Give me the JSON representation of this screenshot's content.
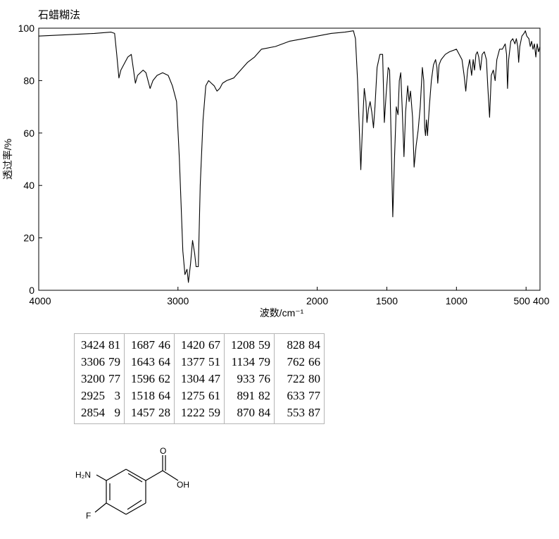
{
  "header": {
    "method_label": "石蜡糊法"
  },
  "chart_data": {
    "type": "line",
    "xlabel": "波数/cm⁻¹",
    "ylabel": "透过率/%",
    "xlim": [
      4000,
      400
    ],
    "ylim": [
      0,
      100
    ],
    "x_reversed": true,
    "xticks": [
      "4000",
      "3000",
      "2000",
      "1500",
      "1000",
      "500",
      "400"
    ],
    "yticks": [
      "0",
      "20",
      "40",
      "60",
      "80",
      "100"
    ],
    "grid": false,
    "series": [
      {
        "points": [
          [
            4000,
            97
          ],
          [
            3800,
            97.5
          ],
          [
            3600,
            98
          ],
          [
            3480,
            98.5
          ],
          [
            3455,
            98
          ],
          [
            3440,
            90
          ],
          [
            3424,
            81
          ],
          [
            3410,
            84
          ],
          [
            3390,
            86
          ],
          [
            3360,
            89
          ],
          [
            3335,
            90
          ],
          [
            3306,
            79
          ],
          [
            3290,
            82
          ],
          [
            3250,
            84
          ],
          [
            3230,
            83
          ],
          [
            3200,
            77
          ],
          [
            3180,
            80
          ],
          [
            3150,
            82
          ],
          [
            3110,
            83
          ],
          [
            3070,
            82
          ],
          [
            3040,
            78
          ],
          [
            3010,
            72
          ],
          [
            2990,
            50
          ],
          [
            2965,
            15
          ],
          [
            2950,
            6
          ],
          [
            2935,
            8
          ],
          [
            2925,
            3
          ],
          [
            2910,
            10
          ],
          [
            2895,
            19
          ],
          [
            2880,
            14
          ],
          [
            2870,
            9
          ],
          [
            2854,
            9
          ],
          [
            2840,
            40
          ],
          [
            2820,
            65
          ],
          [
            2800,
            78
          ],
          [
            2780,
            80
          ],
          [
            2760,
            79
          ],
          [
            2740,
            78
          ],
          [
            2720,
            76
          ],
          [
            2700,
            77
          ],
          [
            2680,
            79
          ],
          [
            2650,
            80
          ],
          [
            2600,
            81
          ],
          [
            2550,
            84
          ],
          [
            2500,
            87
          ],
          [
            2450,
            89
          ],
          [
            2400,
            92
          ],
          [
            2300,
            93
          ],
          [
            2200,
            95
          ],
          [
            2100,
            96
          ],
          [
            2000,
            97
          ],
          [
            1900,
            98
          ],
          [
            1800,
            98.5
          ],
          [
            1740,
            99
          ],
          [
            1725,
            96
          ],
          [
            1710,
            80
          ],
          [
            1700,
            65
          ],
          [
            1687,
            46
          ],
          [
            1675,
            62
          ],
          [
            1662,
            77
          ],
          [
            1650,
            72
          ],
          [
            1643,
            64
          ],
          [
            1632,
            69
          ],
          [
            1620,
            72
          ],
          [
            1608,
            68
          ],
          [
            1596,
            62
          ],
          [
            1585,
            70
          ],
          [
            1570,
            85
          ],
          [
            1550,
            90
          ],
          [
            1530,
            90
          ],
          [
            1518,
            64
          ],
          [
            1505,
            75
          ],
          [
            1490,
            85
          ],
          [
            1480,
            84
          ],
          [
            1470,
            60
          ],
          [
            1457,
            28
          ],
          [
            1445,
            50
          ],
          [
            1432,
            70
          ],
          [
            1420,
            67
          ],
          [
            1410,
            80
          ],
          [
            1400,
            83
          ],
          [
            1390,
            70
          ],
          [
            1377,
            51
          ],
          [
            1365,
            68
          ],
          [
            1350,
            78
          ],
          [
            1340,
            72
          ],
          [
            1330,
            76
          ],
          [
            1315,
            66
          ],
          [
            1304,
            47
          ],
          [
            1290,
            55
          ],
          [
            1275,
            61
          ],
          [
            1260,
            70
          ],
          [
            1245,
            85
          ],
          [
            1235,
            80
          ],
          [
            1228,
            62
          ],
          [
            1222,
            59
          ],
          [
            1215,
            65
          ],
          [
            1208,
            59
          ],
          [
            1195,
            70
          ],
          [
            1180,
            80
          ],
          [
            1165,
            86
          ],
          [
            1150,
            88
          ],
          [
            1140,
            85
          ],
          [
            1134,
            79
          ],
          [
            1125,
            86
          ],
          [
            1110,
            88
          ],
          [
            1080,
            90
          ],
          [
            1050,
            91
          ],
          [
            1000,
            92
          ],
          [
            960,
            88
          ],
          [
            945,
            82
          ],
          [
            933,
            76
          ],
          [
            920,
            84
          ],
          [
            905,
            88
          ],
          [
            891,
            82
          ],
          [
            880,
            88
          ],
          [
            870,
            84
          ],
          [
            860,
            90
          ],
          [
            850,
            91
          ],
          [
            840,
            89
          ],
          [
            828,
            84
          ],
          [
            815,
            90
          ],
          [
            800,
            91
          ],
          [
            785,
            88
          ],
          [
            775,
            78
          ],
          [
            762,
            66
          ],
          [
            750,
            82
          ],
          [
            735,
            84
          ],
          [
            722,
            80
          ],
          [
            710,
            88
          ],
          [
            690,
            92
          ],
          [
            670,
            92
          ],
          [
            650,
            94
          ],
          [
            640,
            90
          ],
          [
            633,
            77
          ],
          [
            625,
            88
          ],
          [
            610,
            95
          ],
          [
            595,
            96
          ],
          [
            580,
            94
          ],
          [
            570,
            96
          ],
          [
            560,
            93
          ],
          [
            553,
            87
          ],
          [
            545,
            93
          ],
          [
            530,
            97
          ],
          [
            515,
            98
          ],
          [
            505,
            99
          ],
          [
            495,
            97
          ],
          [
            480,
            96
          ],
          [
            470,
            93
          ],
          [
            460,
            95
          ],
          [
            450,
            92
          ],
          [
            440,
            94
          ],
          [
            430,
            89
          ],
          [
            420,
            94
          ],
          [
            410,
            91
          ],
          [
            400,
            93
          ]
        ]
      }
    ]
  },
  "peak_table": {
    "columns": [
      [
        [
          "3424",
          "81"
        ],
        [
          "3306",
          "79"
        ],
        [
          "3200",
          "77"
        ],
        [
          "2925",
          "3"
        ],
        [
          "2854",
          "9"
        ]
      ],
      [
        [
          "1687",
          "46"
        ],
        [
          "1643",
          "64"
        ],
        [
          "1596",
          "62"
        ],
        [
          "1518",
          "64"
        ],
        [
          "1457",
          "28"
        ]
      ],
      [
        [
          "1420",
          "67"
        ],
        [
          "1377",
          "51"
        ],
        [
          "1304",
          "47"
        ],
        [
          "1275",
          "61"
        ],
        [
          "1222",
          "59"
        ]
      ],
      [
        [
          "1208",
          "59"
        ],
        [
          "1134",
          "79"
        ],
        [
          "933",
          "76"
        ],
        [
          "891",
          "82"
        ],
        [
          "870",
          "84"
        ]
      ],
      [
        [
          "828",
          "84"
        ],
        [
          "762",
          "66"
        ],
        [
          "722",
          "80"
        ],
        [
          "633",
          "77"
        ],
        [
          "553",
          "87"
        ]
      ]
    ]
  },
  "structure": {
    "label_nh2": "H₂N",
    "label_oh": "OH",
    "label_o": "O",
    "label_f": "F"
  }
}
